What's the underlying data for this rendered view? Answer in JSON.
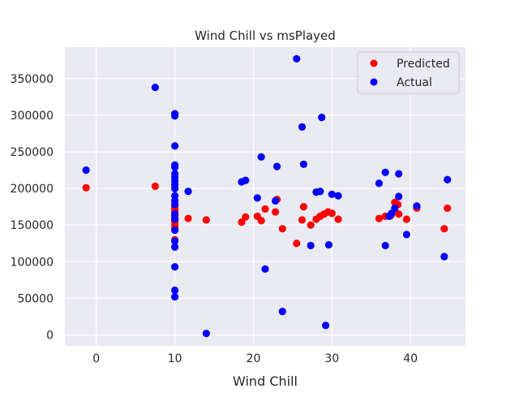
{
  "chart_data": {
    "type": "scatter",
    "title": "Wind Chill vs msPlayed",
    "xlabel": "Wind Chill",
    "ylabel": "",
    "xlim": [
      -4,
      47
    ],
    "ylim": [
      -15000,
      393000
    ],
    "xticks": [
      0,
      10,
      20,
      30,
      40
    ],
    "yticks": [
      0,
      50000,
      100000,
      150000,
      200000,
      250000,
      300000,
      350000
    ],
    "grid": true,
    "legend_position": "top-right",
    "series": [
      {
        "name": "Predicted",
        "color": "#ff0000",
        "points": [
          [
            -1.3,
            201000
          ],
          [
            7.5,
            203000
          ],
          [
            10,
            130000
          ],
          [
            10,
            145000
          ],
          [
            10,
            150000
          ],
          [
            10,
            155000
          ],
          [
            10,
            158000
          ],
          [
            10,
            160000
          ],
          [
            10,
            163000
          ],
          [
            10,
            168000
          ],
          [
            10,
            172000
          ],
          [
            10,
            175000
          ],
          [
            11.7,
            159000
          ],
          [
            14,
            157000
          ],
          [
            18.5,
            154000
          ],
          [
            19,
            161000
          ],
          [
            20.5,
            162000
          ],
          [
            21,
            156000
          ],
          [
            21.5,
            172000
          ],
          [
            22.8,
            168000
          ],
          [
            23,
            185000
          ],
          [
            23.7,
            145000
          ],
          [
            25.5,
            125000
          ],
          [
            26.2,
            157000
          ],
          [
            26.4,
            175000
          ],
          [
            27.3,
            150000
          ],
          [
            28,
            158000
          ],
          [
            28.5,
            162000
          ],
          [
            29,
            165000
          ],
          [
            29.5,
            168000
          ],
          [
            30,
            166000
          ],
          [
            30.8,
            158000
          ],
          [
            36,
            159000
          ],
          [
            36.8,
            162000
          ],
          [
            37.5,
            163000
          ],
          [
            38,
            181000
          ],
          [
            38.5,
            165000
          ],
          [
            38.4,
            178000
          ],
          [
            39.5,
            158000
          ],
          [
            40.8,
            173000
          ],
          [
            44.3,
            145000
          ],
          [
            44.7,
            173000
          ]
        ]
      },
      {
        "name": "Actual",
        "color": "#0000ff",
        "points": [
          [
            -1.3,
            225000
          ],
          [
            7.5,
            338000
          ],
          [
            10,
            302000
          ],
          [
            10,
            299000
          ],
          [
            10,
            258000
          ],
          [
            10,
            232000
          ],
          [
            10,
            229000
          ],
          [
            10,
            220000
          ],
          [
            10,
            215000
          ],
          [
            10,
            210000
          ],
          [
            10,
            205000
          ],
          [
            10,
            200000
          ],
          [
            10,
            190000
          ],
          [
            10,
            183000
          ],
          [
            10,
            178000
          ],
          [
            10,
            165000
          ],
          [
            10,
            158000
          ],
          [
            10,
            143000
          ],
          [
            10,
            128000
          ],
          [
            10,
            120000
          ],
          [
            10,
            93000
          ],
          [
            10,
            61000
          ],
          [
            10,
            52000
          ],
          [
            11.7,
            196000
          ],
          [
            14,
            2000
          ],
          [
            18.5,
            209000
          ],
          [
            19,
            211000
          ],
          [
            20.5,
            187000
          ],
          [
            21,
            243000
          ],
          [
            21.5,
            90000
          ],
          [
            22.8,
            183000
          ],
          [
            23,
            230000
          ],
          [
            23.7,
            32000
          ],
          [
            25.5,
            377000
          ],
          [
            26.2,
            284000
          ],
          [
            26.4,
            233000
          ],
          [
            27.3,
            122000
          ],
          [
            28,
            195000
          ],
          [
            28.5,
            196000
          ],
          [
            28.7,
            297000
          ],
          [
            29.2,
            13000
          ],
          [
            29.6,
            123000
          ],
          [
            30,
            192000
          ],
          [
            30.8,
            190000
          ],
          [
            36,
            207000
          ],
          [
            36.8,
            222000
          ],
          [
            36.8,
            122000
          ],
          [
            37.3,
            162000
          ],
          [
            37.6,
            166000
          ],
          [
            38,
            173000
          ],
          [
            38.5,
            220000
          ],
          [
            38.5,
            189000
          ],
          [
            39.5,
            137000
          ],
          [
            40.8,
            176000
          ],
          [
            44.3,
            107000
          ],
          [
            44.7,
            212000
          ]
        ]
      }
    ]
  }
}
